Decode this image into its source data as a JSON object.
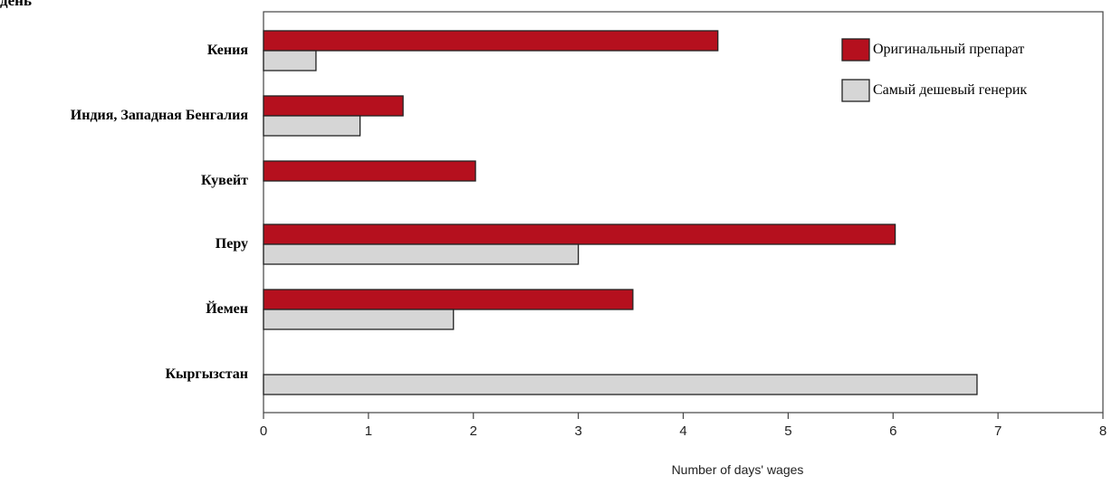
{
  "chart_data": {
    "type": "bar",
    "orientation": "horizontal",
    "title": "день",
    "xlabel": "Number of days' wages",
    "ylabel": "",
    "xlim": [
      0,
      8
    ],
    "xticks": [
      "0",
      "1",
      "2",
      "3",
      "4",
      "5",
      "6",
      "7",
      "8"
    ],
    "categories": [
      "Кения",
      "Индия, Западная Бенгалия",
      "Кувейт",
      "Перу",
      "Йемен",
      "Кыргызстан"
    ],
    "series": [
      {
        "name": "Оригинальный препарат",
        "color": "#b5101e",
        "values": [
          4.33,
          1.33,
          2.02,
          6.02,
          3.52,
          null
        ]
      },
      {
        "name": "Самый дешевый генерик",
        "color": "#d6d6d6",
        "values": [
          0.5,
          0.92,
          null,
          3.0,
          1.81,
          6.8
        ]
      }
    ],
    "legend_position": "top-right",
    "grid": false
  }
}
